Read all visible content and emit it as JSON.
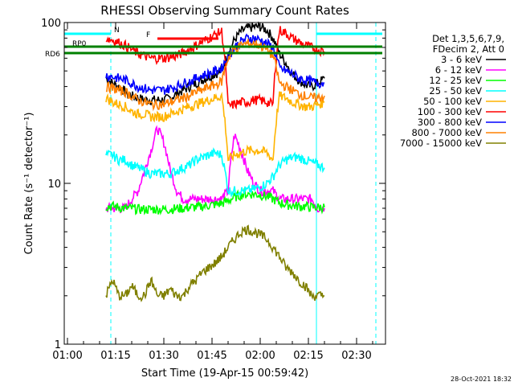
{
  "chart_data": {
    "type": "line",
    "title": "RHESSI Observing Summary Count Rates",
    "xlabel": "Start Time (19-Apr-15 00:59:42)",
    "ylabel": "Count Rate (s⁻¹ detector⁻¹)",
    "y_scale": "log",
    "ylim": [
      1,
      100
    ],
    "xlim_minutes": [
      -1,
      99
    ],
    "x_ticks": [
      {
        "t": 0,
        "label": "01:00"
      },
      {
        "t": 15,
        "label": "01:15"
      },
      {
        "t": 30,
        "label": "01:30"
      },
      {
        "t": 45,
        "label": "01:45"
      },
      {
        "t": 60,
        "label": "02:00"
      },
      {
        "t": 75,
        "label": "02:15"
      },
      {
        "t": 90,
        "label": "02:30"
      }
    ],
    "y_ticks": [
      {
        "v": 1,
        "label": "1"
      },
      {
        "v": 10,
        "label": "10"
      },
      {
        "v": 100,
        "label": "100"
      }
    ],
    "legend_header": [
      "Det 1,3,5,6,7,9,",
      "FDecim 2, Att 0"
    ],
    "series": [
      {
        "name": "3 - 6 keV",
        "color": "#000000",
        "x": [
          12,
          14,
          16,
          18,
          20,
          22,
          24,
          26,
          28,
          30,
          32,
          34,
          36,
          38,
          40,
          42,
          44,
          46,
          48,
          50,
          52,
          54,
          56,
          58,
          60,
          62,
          64,
          66,
          68,
          70,
          72,
          74,
          76,
          78,
          80
        ],
        "y": [
          45,
          42,
          40,
          37,
          35,
          34,
          33,
          33,
          33,
          33,
          34,
          36,
          38,
          40,
          42,
          44,
          46,
          48,
          50,
          64,
          78,
          88,
          92,
          94,
          94,
          90,
          80,
          64,
          56,
          48,
          44,
          41,
          40,
          42,
          45
        ]
      },
      {
        "name": "6 - 12 keV",
        "color": "#ff00ff",
        "x": [
          12,
          14,
          16,
          18,
          20,
          22,
          24,
          26,
          28,
          30,
          32,
          34,
          36,
          38,
          40,
          42,
          44,
          46,
          48,
          50,
          52,
          54,
          56,
          58,
          60,
          62,
          64,
          66,
          68,
          70,
          72,
          74,
          76,
          78,
          80
        ],
        "y": [
          7,
          7,
          7,
          7,
          8,
          9,
          12,
          16,
          22,
          18,
          12,
          9,
          8,
          8,
          8,
          8,
          8,
          8,
          8,
          9,
          20,
          16,
          12,
          10,
          9,
          9,
          9,
          8,
          8,
          8,
          8,
          8,
          8,
          7,
          7
        ]
      },
      {
        "name": "12 - 25 keV",
        "color": "#00ff00",
        "x": [
          12,
          14,
          16,
          18,
          20,
          22,
          24,
          26,
          28,
          30,
          32,
          34,
          36,
          38,
          40,
          42,
          44,
          46,
          48,
          50,
          52,
          54,
          56,
          58,
          60,
          62,
          64,
          66,
          68,
          70,
          72,
          74,
          76,
          78,
          80
        ],
        "y": [
          7.2,
          7.2,
          7.1,
          7.0,
          7.0,
          6.9,
          6.9,
          6.9,
          6.9,
          6.9,
          6.9,
          7.0,
          7.0,
          7.1,
          7.1,
          7.2,
          7.3,
          7.4,
          7.5,
          7.8,
          8.2,
          8.5,
          8.6,
          8.6,
          8.5,
          8.3,
          8.0,
          7.6,
          7.4,
          7.3,
          7.2,
          7.2,
          7.1,
          7.1,
          7.1
        ]
      },
      {
        "name": "25 - 50 keV",
        "color": "#00ffff",
        "x": [
          12,
          14,
          16,
          18,
          20,
          22,
          24,
          26,
          28,
          30,
          32,
          34,
          36,
          38,
          40,
          42,
          44,
          46,
          48,
          50,
          52,
          54,
          56,
          58,
          60,
          62,
          64,
          66,
          68,
          70,
          72,
          74,
          76,
          78,
          80
        ],
        "y": [
          15,
          15,
          14,
          14,
          13,
          12.5,
          12,
          11.5,
          11.5,
          11.5,
          11.5,
          12,
          12.5,
          13,
          14,
          14.5,
          15,
          15.5,
          15,
          9,
          9,
          9,
          9,
          9.2,
          9.5,
          10,
          11,
          13,
          14,
          14.5,
          14.5,
          14,
          13.5,
          13,
          12.5
        ]
      },
      {
        "name": "50 - 100 keV",
        "color": "#ffb400",
        "x": [
          12,
          14,
          16,
          18,
          20,
          22,
          24,
          26,
          28,
          30,
          32,
          34,
          36,
          38,
          40,
          42,
          44,
          46,
          48,
          50,
          52,
          54,
          56,
          58,
          60,
          62,
          64,
          66,
          68,
          70,
          72,
          74,
          76,
          78,
          80
        ],
        "y": [
          34,
          32,
          31,
          30,
          28,
          27,
          27,
          26,
          26,
          26,
          27,
          28,
          29,
          30,
          31,
          32,
          33,
          34,
          35,
          14,
          15,
          15.5,
          16,
          16,
          16,
          15.5,
          14,
          35,
          34,
          32,
          31,
          30,
          30,
          31,
          32
        ]
      },
      {
        "name": "100 - 300 keV",
        "color": "#ff0000",
        "x": [
          12,
          14,
          16,
          18,
          20,
          22,
          24,
          26,
          28,
          30,
          32,
          34,
          36,
          38,
          40,
          42,
          44,
          46,
          48,
          50,
          52,
          54,
          56,
          58,
          60,
          62,
          64,
          66,
          68,
          70,
          72,
          74,
          76,
          78,
          80
        ],
        "y": [
          80,
          78,
          75,
          72,
          68,
          64,
          62,
          60,
          60,
          60,
          61,
          62,
          65,
          68,
          72,
          76,
          80,
          84,
          88,
          30,
          31,
          32,
          32,
          33,
          33,
          32,
          31,
          90,
          86,
          80,
          76,
          72,
          70,
          68,
          66
        ]
      },
      {
        "name": "300 - 800 keV",
        "color": "#0000ff",
        "x": [
          12,
          14,
          16,
          18,
          20,
          22,
          24,
          26,
          28,
          30,
          32,
          34,
          36,
          38,
          40,
          42,
          44,
          46,
          48,
          50,
          52,
          54,
          56,
          58,
          60,
          62,
          64,
          66,
          68,
          70,
          72,
          74,
          76,
          78,
          80
        ],
        "y": [
          47,
          46,
          45,
          44,
          42,
          40,
          39,
          38,
          38,
          38,
          39,
          40,
          42,
          43,
          45,
          47,
          48,
          50,
          52,
          62,
          70,
          76,
          80,
          80,
          78,
          74,
          70,
          52,
          50,
          48,
          45,
          44,
          43,
          42,
          42
        ]
      },
      {
        "name": "800 - 7000 keV",
        "color": "#ff8000",
        "x": [
          12,
          14,
          16,
          18,
          20,
          22,
          24,
          26,
          28,
          30,
          32,
          34,
          36,
          38,
          40,
          42,
          44,
          46,
          48,
          50,
          52,
          54,
          56,
          58,
          60,
          62,
          64,
          66,
          68,
          70,
          72,
          74,
          76,
          78,
          80
        ],
        "y": [
          40,
          39,
          38,
          37,
          35,
          33,
          32,
          31,
          31,
          31,
          32,
          33,
          34,
          35,
          37,
          38,
          40,
          41,
          43,
          60,
          68,
          72,
          74,
          74,
          72,
          68,
          62,
          42,
          40,
          38,
          36,
          35,
          34,
          34,
          35
        ]
      },
      {
        "name": "7000 - 15000 keV",
        "color": "#808000",
        "x": [
          12,
          14,
          16,
          18,
          20,
          22,
          24,
          26,
          28,
          30,
          32,
          34,
          36,
          38,
          40,
          42,
          44,
          46,
          48,
          50,
          52,
          54,
          56,
          58,
          60,
          62,
          64,
          66,
          68,
          70,
          72,
          74,
          76,
          78,
          80
        ],
        "y": [
          2,
          2.5,
          2,
          2,
          2.3,
          2,
          2,
          2.5,
          2,
          2,
          2.2,
          2,
          2,
          2.3,
          2.5,
          2.8,
          3,
          3.2,
          3.5,
          4,
          4.5,
          5,
          5.2,
          5,
          4.8,
          4.5,
          4,
          3.5,
          3,
          2.8,
          2.5,
          2.3,
          2,
          2,
          2
        ]
      }
    ],
    "flags": [
      {
        "name": "N",
        "color": "#00ffff",
        "segments": [
          [
            -1,
            13.5
          ],
          [
            77.5,
            98
          ]
        ]
      },
      {
        "name": "F",
        "color": "#ff0000",
        "segments": [
          [
            28,
            47
          ]
        ]
      },
      {
        "name": "RD6",
        "color": "#008000",
        "segments": [
          [
            -1,
            98
          ]
        ]
      },
      {
        "name": "RP0",
        "color": "#008000",
        "segments": [
          [
            -1,
            98
          ]
        ]
      }
    ],
    "vertical_markers": [
      {
        "t": 13.5,
        "color": "#00ffff",
        "style": "dashed"
      },
      {
        "t": 96,
        "color": "#00ffff",
        "style": "dashed"
      },
      {
        "t": 77.5,
        "color": "#00ffff",
        "style": "solid"
      }
    ],
    "grid": false,
    "legend_position": "right",
    "timestamp": "28-Oct-2021 18:32"
  }
}
